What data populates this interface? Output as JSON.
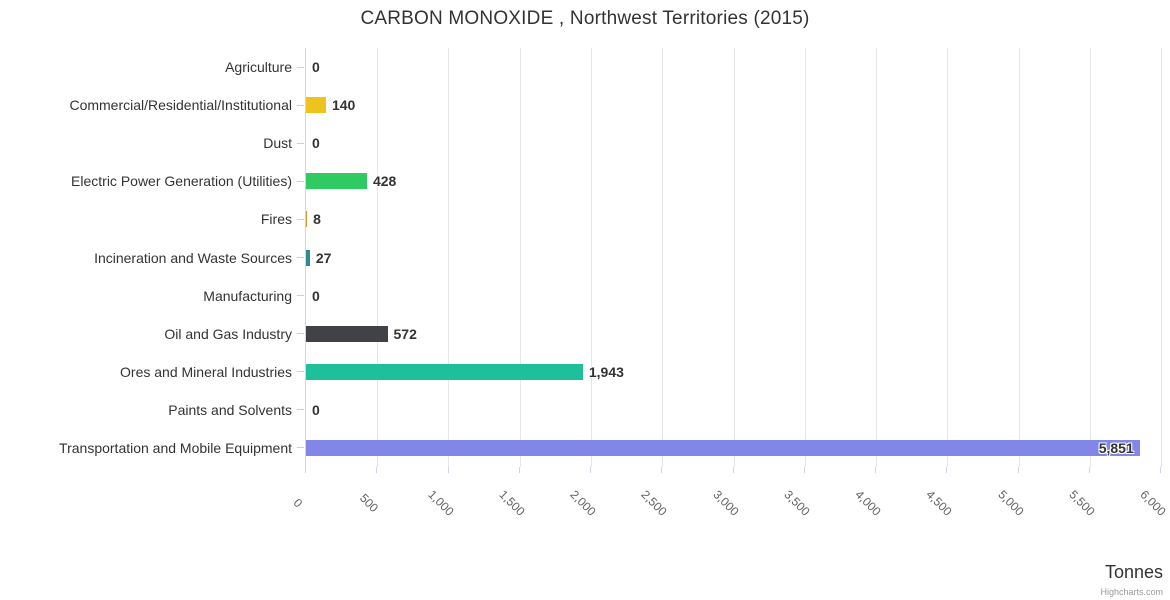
{
  "title": "CARBON MONOXIDE , Northwest Territories (2015)",
  "x_axis_title": "Tonnes",
  "credits": "Highcharts.com",
  "chart_data": {
    "type": "bar",
    "orientation": "horizontal",
    "title": "CARBON MONOXIDE , Northwest Territories (2015)",
    "xlabel": "Tonnes",
    "ylabel": "",
    "xlim": [
      0,
      6000
    ],
    "tick_interval": 500,
    "ticks": [
      0,
      500,
      1000,
      1500,
      2000,
      2500,
      3000,
      3500,
      4000,
      4500,
      5000,
      5500,
      6000
    ],
    "tick_labels": [
      "0",
      "500",
      "1,000",
      "1,500",
      "2,000",
      "2,500",
      "3,000",
      "3,500",
      "4,000",
      "4,500",
      "5,000",
      "5,500",
      "6,000"
    ],
    "grid": true,
    "legend": false,
    "categories": [
      "Agriculture",
      "Commercial/Residential/Institutional",
      "Dust",
      "Electric Power Generation (Utilities)",
      "Fires",
      "Incineration and Waste Sources",
      "Manufacturing",
      "Oil and Gas Industry",
      "Ores and Mineral Industries",
      "Paints and Solvents",
      "Transportation and Mobile Equipment"
    ],
    "values": [
      0,
      140,
      0,
      428,
      8,
      27,
      0,
      572,
      1943,
      0,
      5851
    ],
    "value_labels": [
      "0",
      "140",
      "0",
      "428",
      "8",
      "27",
      "0",
      "572",
      "1,943",
      "0",
      "5,851"
    ],
    "bar_colors": [
      null,
      "#edc31d",
      null,
      "#2fcb62",
      "#d9952e",
      "#2d8d90",
      null,
      "#414247",
      "#20bf9c",
      null,
      "#8186e7"
    ],
    "label_inside": [
      false,
      false,
      false,
      false,
      false,
      false,
      false,
      false,
      false,
      false,
      true
    ]
  },
  "colors": {
    "background": "#ffffff",
    "axis_line": "#ccd6eb",
    "gridline": "#e6e6e6",
    "x_tick": "#ccd6eb",
    "category_tick": "#cfcfcf",
    "text": "#333333",
    "x_label": "#606060",
    "credits": "#999999"
  }
}
